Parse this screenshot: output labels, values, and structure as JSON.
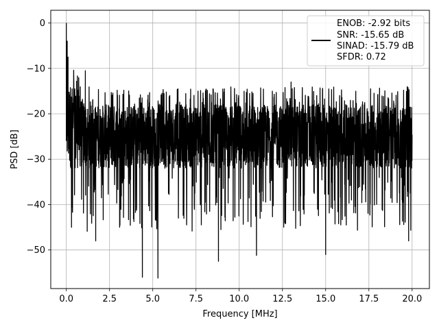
{
  "chart_data": {
    "type": "line",
    "xlabel": "Frequency [MHz]",
    "ylabel": "PSD [dB]",
    "xlim": [
      -0.9,
      21.0
    ],
    "ylim": [
      -58.5,
      2.8
    ],
    "x_ticks": [
      0.0,
      2.5,
      5.0,
      7.5,
      10.0,
      12.5,
      15.0,
      17.5,
      20.0
    ],
    "x_tick_labels": [
      "0.0",
      "2.5",
      "5.0",
      "7.5",
      "10.0",
      "12.5",
      "15.0",
      "17.5",
      "20.0"
    ],
    "y_ticks": [
      0,
      -10,
      -20,
      -30,
      -40,
      -50
    ],
    "y_tick_labels": [
      "0",
      "−10",
      "−20",
      "−30",
      "−40",
      "−50"
    ],
    "grid": true,
    "legend_placement": "top-right",
    "series": [
      {
        "name": "ENOB: -2.92 bits\nSNR: -15.65 dB\nSINAD: -15.79 dB\nSFDR: 0.72",
        "legend_lines": [
          "ENOB: -2.92 bits",
          "SNR: -15.65 dB",
          "SINAD: -15.79 dB",
          "SFDR: 0.72"
        ],
        "color": "#000000",
        "x_range": [
          0.0,
          20.0
        ],
        "envelope_upper_db": -18,
        "envelope_lower_db": -32,
        "peak_db": 0,
        "notable_points": [
          {
            "x": 0.0,
            "y": 0.0
          },
          {
            "x": 0.05,
            "y": -4.0
          },
          {
            "x": 0.1,
            "y": -7.5
          },
          {
            "x": 0.3,
            "y": -45.0
          },
          {
            "x": 1.1,
            "y": -10.5
          },
          {
            "x": 1.7,
            "y": -48.0
          },
          {
            "x": 4.4,
            "y": -56.0
          },
          {
            "x": 5.3,
            "y": -56.2
          },
          {
            "x": 8.8,
            "y": -52.5
          },
          {
            "x": 11.0,
            "y": -51.2
          },
          {
            "x": 13.0,
            "y": -13.0
          },
          {
            "x": 15.0,
            "y": -51.0
          },
          {
            "x": 17.6,
            "y": -14.5
          },
          {
            "x": 19.8,
            "y": -48.0
          }
        ]
      }
    ]
  }
}
